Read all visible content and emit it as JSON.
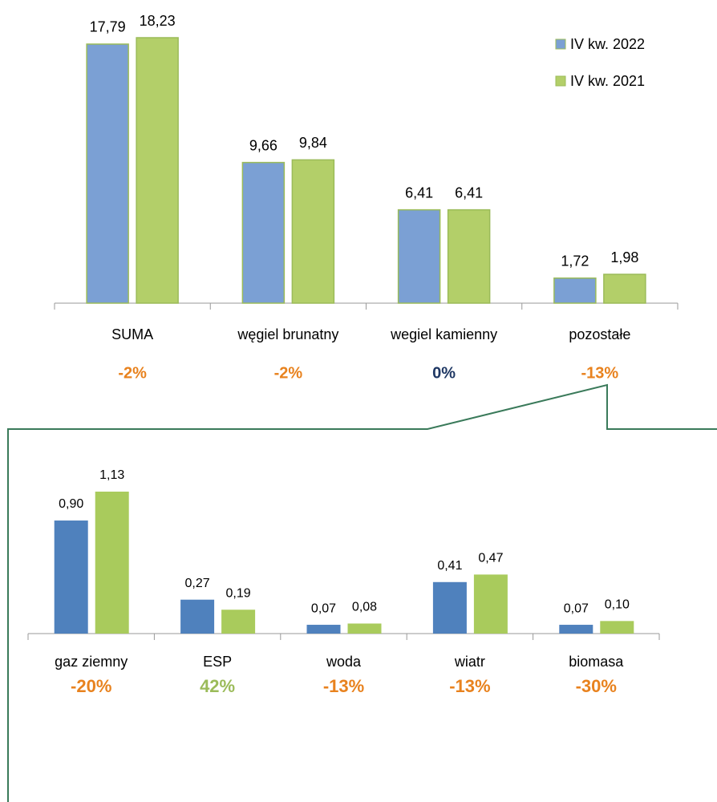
{
  "chart_data": [
    {
      "type": "bar",
      "categories": [
        "SUMA",
        "węgiel brunatny",
        "wegiel kamienny",
        "pozostałe"
      ],
      "series": [
        {
          "name": "IV kw. 2022",
          "color": "#7ba0d4",
          "stroke": "#9bbb59",
          "values": [
            17.79,
            9.66,
            6.41,
            1.72
          ],
          "value_labels": [
            "17,79",
            "9,66",
            "6,41",
            "1,72"
          ]
        },
        {
          "name": "IV kw. 2021",
          "color": "#b3cf69",
          "stroke": "#9bbb59",
          "values": [
            18.23,
            9.84,
            6.41,
            1.98
          ],
          "value_labels": [
            "18,23",
            "9,84",
            "6,41",
            "1,98"
          ]
        }
      ],
      "annotations": [
        "-2%",
        "-2%",
        "0%",
        "-13%"
      ],
      "annotation_colors": [
        "#e8821e",
        "#e8821e",
        "#1f3864",
        "#e8821e"
      ],
      "legend": "top-right"
    },
    {
      "type": "bar",
      "categories": [
        "gaz ziemny",
        "ESP",
        "woda",
        "wiatr",
        "biomasa"
      ],
      "series": [
        {
          "color": "#4f81bd",
          "values": [
            0.9,
            0.27,
            0.07,
            0.41,
            0.07
          ],
          "value_labels": [
            "0,90",
            "0,27",
            "0,07",
            "0,41",
            "0,07"
          ]
        },
        {
          "color": "#a9cb5c",
          "values": [
            1.13,
            0.19,
            0.08,
            0.47,
            0.1
          ],
          "value_labels": [
            "1,13",
            "0,19",
            "0,08",
            "0,47",
            "0,10"
          ]
        }
      ],
      "annotations": [
        "-20%",
        "42%",
        "-13%",
        "-13%",
        "-30%"
      ],
      "annotation_colors": [
        "#e8821e",
        "#9bbb59",
        "#e8821e",
        "#e8821e",
        "#e8821e"
      ]
    }
  ]
}
